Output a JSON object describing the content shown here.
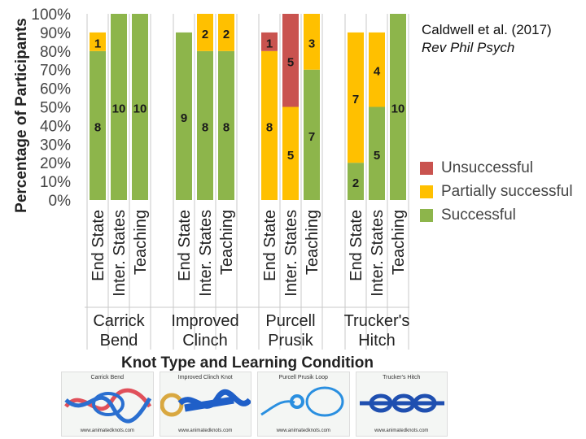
{
  "citation": {
    "authors": "Caldwell et al. (2017)",
    "journal": "Rev Phil Psych"
  },
  "colors": {
    "unsuccessful": "#c9534f",
    "partial": "#ffc000",
    "successful": "#8db54b"
  },
  "chart_data": {
    "type": "bar",
    "stacked": true,
    "ylabel": "Percentage of Participants",
    "xlabel": "Knot Type and Learning Condition",
    "ylim": [
      0,
      100
    ],
    "yticks": [
      "0%",
      "10%",
      "20%",
      "30%",
      "40%",
      "50%",
      "60%",
      "70%",
      "80%",
      "90%",
      "100%"
    ],
    "legend_position": "right",
    "grid": false,
    "groups": [
      {
        "name": "Carrick Bend",
        "categories": [
          "End State",
          "Inter. States",
          "Teaching"
        ]
      },
      {
        "name": "Improved Clinch",
        "categories": [
          "End State",
          "Inter. States",
          "Teaching"
        ]
      },
      {
        "name": "Purcell Prusik",
        "categories": [
          "End State",
          "Inter. States",
          "Teaching"
        ]
      },
      {
        "name": "Trucker's Hitch",
        "categories": [
          "End State",
          "Inter. States",
          "Teaching"
        ]
      }
    ],
    "series": [
      {
        "name": "Successful",
        "color": "#8db54b",
        "values": [
          8,
          10,
          10,
          9,
          8,
          8,
          0,
          0,
          7,
          2,
          5,
          10
        ]
      },
      {
        "name": "Partially successful",
        "color": "#ffc000",
        "values": [
          1,
          0,
          0,
          0,
          2,
          2,
          8,
          5,
          3,
          7,
          4,
          0
        ]
      },
      {
        "name": "Unsuccessful",
        "color": "#c9534f",
        "values": [
          0,
          0,
          0,
          0,
          0,
          0,
          1,
          5,
          0,
          0,
          0,
          0
        ]
      }
    ],
    "legend": [
      "Unsuccessful",
      "Partially successful",
      "Successful"
    ]
  },
  "photos": [
    {
      "title": "Carrick Bend",
      "url": "www.animatedknots.com",
      "color": "#2a6fd0",
      "accent": "#e0505a"
    },
    {
      "title": "Improved Clinch Knot",
      "url": "www.animatedknots.com",
      "color": "#1f5fc8",
      "accent": "#d9a840"
    },
    {
      "title": "Purcell Prusik Loop",
      "url": "www.animatedknots.com",
      "color": "#2a8fe0",
      "accent": "#2a8fe0"
    },
    {
      "title": "Trucker's Hitch",
      "url": "www.animatedknots.com",
      "color": "#1f4fb0",
      "accent": "#1f4fb0"
    }
  ]
}
